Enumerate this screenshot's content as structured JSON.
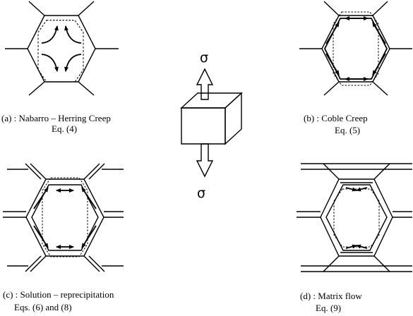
{
  "figure": {
    "stress_symbol_top": "σ",
    "stress_symbol_bottom": "σ",
    "panels": [
      {
        "id": "a",
        "caption_line1": "(a) : Nabarro – Herring Creep",
        "caption_line2": "Eq. (4)"
      },
      {
        "id": "b",
        "caption_line1": "(b) : Coble Creep",
        "caption_line2": "Eq. (5)"
      },
      {
        "id": "c",
        "caption_line1": "(c) : Solution – reprecipitation",
        "caption_line2": "Eqs. (6) and (8)"
      },
      {
        "id": "d",
        "caption_line1": "(d) : Matrix flow",
        "caption_line2": "Eq. (9)"
      }
    ]
  }
}
